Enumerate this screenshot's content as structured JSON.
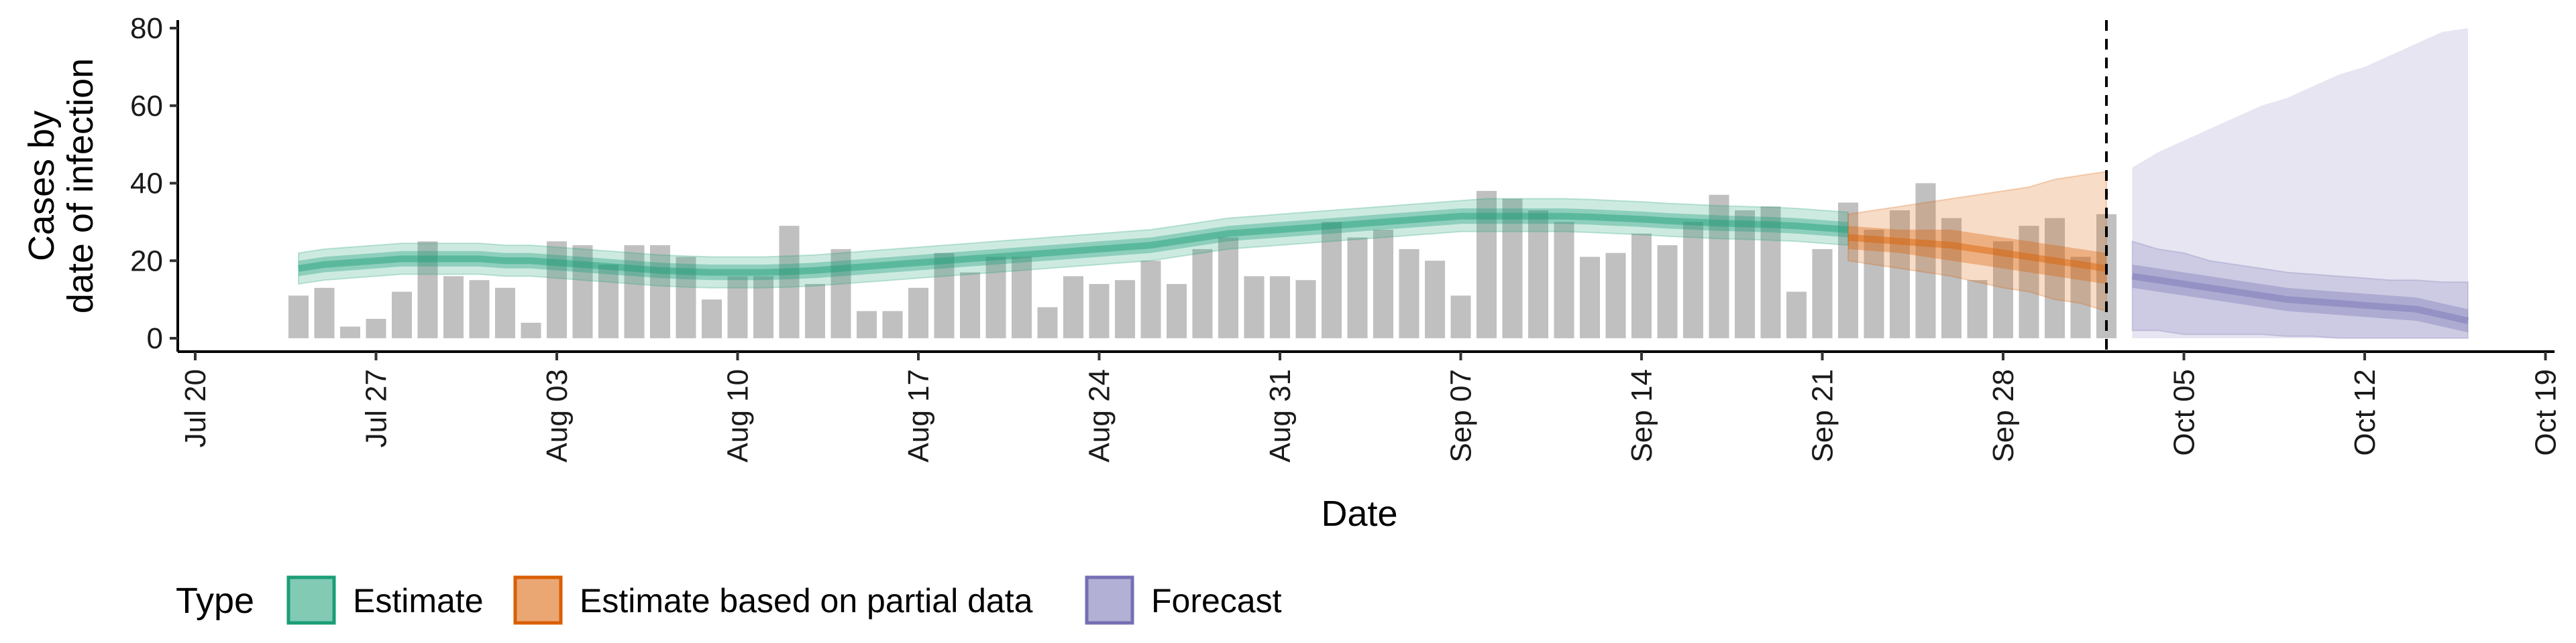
{
  "chart_data": {
    "type": "bar",
    "xlabel": "Date",
    "ylabel_lines": [
      "Cases by",
      "date of infection"
    ],
    "ylim": [
      0,
      83
    ],
    "yticks": [
      0,
      20,
      40,
      60,
      80
    ],
    "ytick_labels": [
      "0",
      "20",
      "40",
      "60",
      "80"
    ],
    "xtick_labels": [
      "Jul 20",
      "Jul 27",
      "Aug 03",
      "Aug 10",
      "Aug 17",
      "Aug 24",
      "Aug 31",
      "Sep 07",
      "Sep 14",
      "Sep 21",
      "Sep 28",
      "Oct 05",
      "Oct 12",
      "Oct 19"
    ],
    "bar_start_date": "2020-07-24",
    "observed_cases": [
      11,
      13,
      3,
      5,
      12,
      25,
      16,
      15,
      13,
      4,
      25,
      24,
      19,
      24,
      24,
      21,
      10,
      16,
      16,
      29,
      14,
      23,
      7,
      7,
      13,
      22,
      17,
      21,
      21,
      8,
      16,
      14,
      15,
      20,
      14,
      23,
      26,
      16,
      16,
      15,
      30,
      26,
      28,
      23,
      20,
      11,
      38,
      36,
      33,
      30,
      21,
      22,
      27,
      24,
      30,
      37,
      33,
      34,
      12,
      23,
      35,
      28,
      33,
      40,
      31,
      15,
      25,
      29,
      31,
      21,
      32
    ],
    "bar_color": "#BDBDBD",
    "cutoff_date": "Oct 02",
    "series": [
      {
        "name": "Estimate",
        "color": "#1B9E77",
        "x_range": [
          "Jul 24",
          "Sep 21"
        ],
        "median": [
          18,
          19,
          19.5,
          20,
          20.5,
          20.5,
          20.5,
          20.5,
          20,
          20,
          19.5,
          19,
          18.5,
          18,
          17.5,
          17.2,
          17,
          17,
          17,
          17.2,
          17.5,
          18,
          18.5,
          19,
          19.5,
          20,
          20.5,
          21,
          21.5,
          22,
          22.5,
          23,
          23.5,
          24,
          25,
          26,
          27,
          27.5,
          28,
          28.5,
          29,
          29.5,
          30,
          30.5,
          31,
          31.5,
          31.5,
          31.5,
          31.5,
          31.5,
          31.3,
          31,
          30.7,
          30.3,
          30,
          29.7,
          29.5,
          29.3,
          29,
          28.5,
          28
        ],
        "inner_low": [
          16,
          17,
          17.5,
          18,
          18.5,
          18.5,
          18.5,
          18.5,
          18,
          18,
          17.5,
          17,
          16.5,
          16,
          15.5,
          15.2,
          15,
          15,
          15,
          15.2,
          15.5,
          16,
          16.5,
          17,
          17.5,
          18,
          18.5,
          19,
          19.5,
          20,
          20.5,
          21,
          21.5,
          22,
          23,
          24,
          25,
          25.5,
          26,
          26.5,
          27,
          27.5,
          28,
          28.5,
          29,
          29.5,
          29.5,
          29.5,
          29.5,
          29.5,
          29.3,
          29,
          28.7,
          28.3,
          28,
          27.7,
          27.5,
          27.3,
          27,
          26.5,
          26
        ],
        "inner_high": [
          20,
          21,
          21.5,
          22,
          22.5,
          22.5,
          22.5,
          22.5,
          22,
          22,
          21.5,
          21,
          20.5,
          20,
          19.5,
          19.2,
          19,
          19,
          19,
          19.2,
          19.5,
          20,
          20.5,
          21,
          21.5,
          22,
          22.5,
          23,
          23.5,
          24,
          24.5,
          25,
          25.5,
          26,
          27,
          28,
          29,
          29.5,
          30,
          30.5,
          31,
          31.5,
          32,
          32.5,
          33,
          33.5,
          33.5,
          33.5,
          33.5,
          33.5,
          33.3,
          33,
          32.7,
          32.3,
          32,
          31.7,
          31.5,
          31.3,
          31,
          30.5,
          30
        ],
        "outer_low": [
          14,
          15,
          15.5,
          16,
          16.5,
          16.5,
          16.5,
          16.5,
          16,
          16,
          15.5,
          15,
          14.5,
          14,
          13.5,
          13.2,
          13,
          13,
          13,
          13.2,
          13.5,
          14,
          14.5,
          15,
          15.5,
          16,
          16.5,
          17,
          17.5,
          18,
          18.5,
          19,
          19.5,
          20,
          21,
          22,
          23,
          23.5,
          24,
          24.5,
          25,
          25.5,
          26,
          26.5,
          27,
          27.5,
          27.5,
          27.5,
          27.5,
          27.5,
          27.3,
          27,
          26.7,
          26.3,
          26,
          25.7,
          25.5,
          25.3,
          25,
          24.5,
          24
        ],
        "outer_high": [
          22,
          23,
          23.5,
          24,
          24.5,
          24.5,
          24.5,
          24.5,
          24,
          24,
          23.5,
          23,
          22.5,
          22,
          21.5,
          21.2,
          21,
          21,
          21,
          21.2,
          21.5,
          22,
          22.5,
          23,
          23.5,
          24,
          24.5,
          25,
          25.5,
          26,
          26.5,
          27,
          27.5,
          28,
          29,
          30,
          31,
          31.5,
          32,
          32.5,
          33,
          33.5,
          34,
          34.5,
          35,
          35.5,
          36,
          36,
          36,
          36,
          35.8,
          35.5,
          35.2,
          34.8,
          34.5,
          34.2,
          34,
          33.8,
          33.5,
          33,
          32.5
        ]
      },
      {
        "name": "Estimate based on partial data",
        "color": "#D95F02",
        "x_range": [
          "Sep 22",
          "Oct 02"
        ],
        "median": [
          26,
          25.5,
          25,
          24.5,
          24,
          23,
          22,
          21,
          20,
          19,
          18
        ],
        "inner_low": [
          23,
          22.5,
          22,
          21,
          20,
          19,
          18,
          17,
          16,
          15,
          14
        ],
        "inner_high": [
          29,
          28.5,
          28,
          28,
          28,
          27,
          26,
          25,
          24,
          23,
          22
        ],
        "outer_low": [
          20,
          19,
          18,
          17,
          16,
          14.5,
          13,
          12,
          10,
          9,
          7
        ],
        "outer_high": [
          32,
          33,
          34,
          35,
          36,
          37,
          38,
          39,
          41,
          42,
          43
        ]
      },
      {
        "name": "Forecast",
        "color": "#7570B3",
        "x_range": [
          "Oct 03",
          "Oct 16"
        ],
        "median": [
          16,
          15,
          14,
          13,
          12,
          11,
          10,
          9.5,
          9,
          8.5,
          8,
          7.5,
          6,
          4.5
        ],
        "inner_low": [
          13,
          12,
          11,
          10,
          9,
          8,
          7,
          6.5,
          6,
          5.5,
          5,
          4.5,
          3,
          1.5
        ],
        "inner_high": [
          19,
          18,
          17,
          16,
          15,
          14,
          13,
          12.5,
          12,
          11.5,
          11,
          10.5,
          9,
          7.5
        ],
        "outer_low": [
          2,
          2,
          1,
          1,
          1,
          1,
          0.5,
          0.5,
          0,
          0,
          0,
          0,
          0,
          0
        ],
        "outer_high": [
          25,
          23,
          22,
          20,
          19,
          18,
          17,
          16.5,
          16,
          15.5,
          15,
          15,
          14.5,
          14.5
        ],
        "band90_low": [
          0,
          0,
          0,
          0,
          0,
          0,
          0,
          0,
          0,
          0,
          0,
          0,
          0,
          0
        ],
        "band90_high": [
          44,
          48,
          51,
          54,
          57,
          60,
          62,
          65,
          68,
          70,
          73,
          76,
          79,
          80
        ]
      }
    ],
    "legend": {
      "title": "Type",
      "position": "bottom-left",
      "entries": [
        "Estimate",
        "Estimate based on partial data",
        "Forecast"
      ]
    },
    "grid": false
  }
}
